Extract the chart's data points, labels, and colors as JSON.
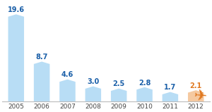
{
  "years": [
    "2005",
    "2006",
    "2007",
    "2008",
    "2009",
    "2010",
    "2011",
    "2012"
  ],
  "values": [
    19.6,
    8.7,
    4.6,
    3.0,
    2.5,
    2.8,
    1.7,
    2.1
  ],
  "bar_colors": [
    "#b8ddf5",
    "#b8ddf5",
    "#b8ddf5",
    "#b8ddf5",
    "#b8ddf5",
    "#b8ddf5",
    "#b8ddf5",
    "#f5c9a0"
  ],
  "label_colors": [
    "#1a5fa8",
    "#1a5fa8",
    "#1a5fa8",
    "#1a5fa8",
    "#1a5fa8",
    "#1a5fa8",
    "#1a5fa8",
    "#e07820"
  ],
  "airplane_color": "#e07820",
  "ylim": [
    0,
    23
  ],
  "background_color": "#ffffff",
  "label_fontsize": 7.0,
  "tick_fontsize": 6.5
}
